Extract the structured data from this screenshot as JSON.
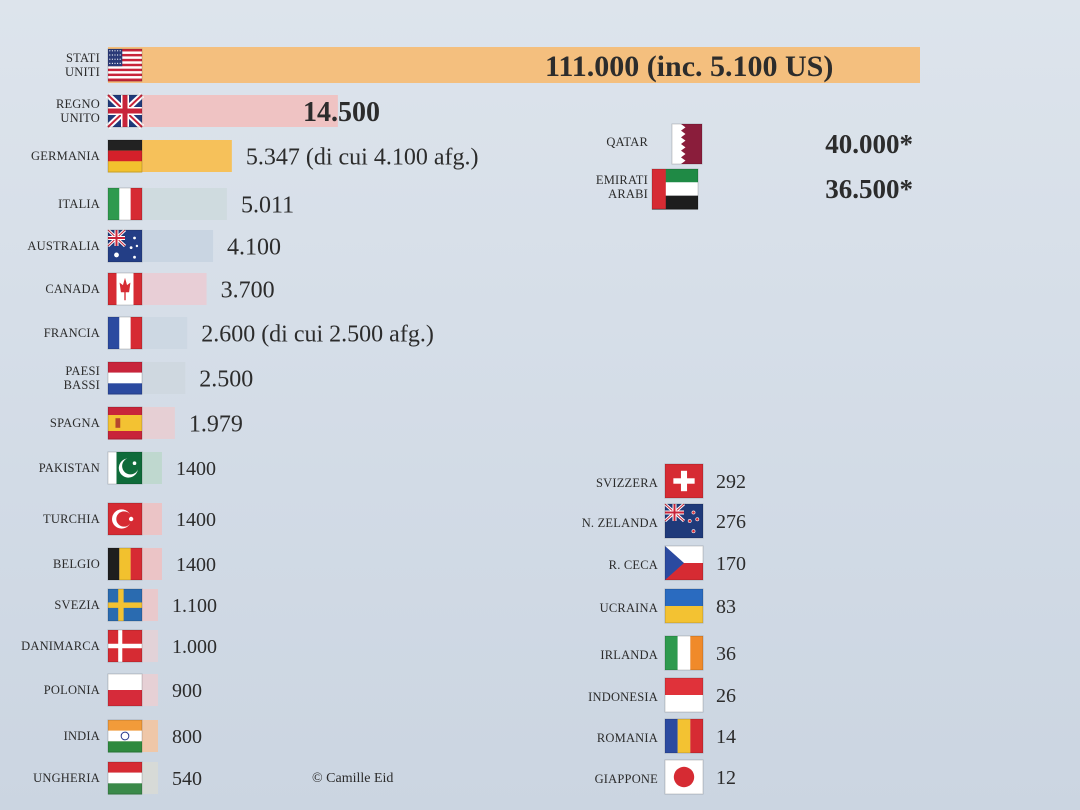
{
  "chart_data": {
    "type": "bar",
    "credit": "© Camille Eid",
    "left_column": [
      {
        "country": "STATI UNITI",
        "flag": "us-flag",
        "value": 111000,
        "label": "111.000  (inc. 5.100 US)",
        "bar_color": "#f4bf7e"
      },
      {
        "country": "REGNO UNITO",
        "flag": "uk-flag",
        "value": 14500,
        "label": "14.500",
        "bar_color": "#efc3c3"
      },
      {
        "country": "GERMANIA",
        "flag": "germany-flag",
        "value": 5347,
        "label": "5.347 (di cui 4.100 afg.)",
        "bar_color": "#f6c15a"
      },
      {
        "country": "ITALIA",
        "flag": "italy-flag",
        "value": 5011,
        "label": "5.011",
        "bar_color": "#cfdbdf"
      },
      {
        "country": "AUSTRALIA",
        "flag": "australia-flag",
        "value": 4100,
        "label": "4.100",
        "bar_color": "#c9d5e2"
      },
      {
        "country": "CANADA",
        "flag": "canada-flag",
        "value": 3700,
        "label": "3.700",
        "bar_color": "#e8ced6"
      },
      {
        "country": "FRANCIA",
        "flag": "france-flag",
        "value": 2600,
        "label": "2.600 (di cui 2.500 afg.)",
        "bar_color": "#cdd8e3"
      },
      {
        "country": "PAESI BASSI",
        "flag": "netherlands-flag",
        "value": 2500,
        "label": "2.500",
        "bar_color": "#cfd8e0"
      },
      {
        "country": "SPAGNA",
        "flag": "spain-flag",
        "value": 1979,
        "label": "1.979",
        "bar_color": "#e6cfd4"
      },
      {
        "country": "PAKISTAN",
        "flag": "pakistan-flag",
        "value": 1400,
        "label": "1400",
        "bar_color": "#bfd8cf"
      },
      {
        "country": "TURCHIA",
        "flag": "turkey-flag",
        "value": 1400,
        "label": "1400",
        "bar_color": "#ebc4c6"
      },
      {
        "country": "BELGIO",
        "flag": "belgium-flag",
        "value": 1400,
        "label": "1400",
        "bar_color": "#ebc4c6"
      },
      {
        "country": "SVEZIA",
        "flag": "sweden-flag",
        "value": 1100,
        "label": "1.100",
        "bar_color": "#e9c9cc"
      },
      {
        "country": "DANIMARCA",
        "flag": "denmark-flag",
        "value": 1000,
        "label": "1.000",
        "bar_color": "#e2d2d8"
      },
      {
        "country": "POLONIA",
        "flag": "poland-flag",
        "value": 900,
        "label": "900",
        "bar_color": "#e6d0d5"
      },
      {
        "country": "INDIA",
        "flag": "india-flag",
        "value": 800,
        "label": "800",
        "bar_color": "#efc7a8"
      },
      {
        "country": "UNGHERIA",
        "flag": "hungary-flag",
        "value": 540,
        "label": "540",
        "bar_color": "#d7dad7"
      }
    ],
    "gulf_column": [
      {
        "country": "QATAR",
        "flag": "qatar-flag",
        "value": 40000,
        "label": "40.000*"
      },
      {
        "country": "EMIRATI ARABI",
        "flag": "uae-flag",
        "value": 36500,
        "label": "36.500*"
      }
    ],
    "right_column": [
      {
        "country": "SVIZZERA",
        "flag": "switzerland-flag",
        "value": 292,
        "label": "292"
      },
      {
        "country": "N. ZELANDA",
        "flag": "new-zealand-flag",
        "value": 276,
        "label": "276"
      },
      {
        "country": "R. CECA",
        "flag": "czech-flag",
        "value": 170,
        "label": "170"
      },
      {
        "country": "UCRAINA",
        "flag": "ukraine-flag",
        "value": 83,
        "label": "83"
      },
      {
        "country": "IRLANDA",
        "flag": "ireland-flag",
        "value": 36,
        "label": "36"
      },
      {
        "country": "INDONESIA",
        "flag": "indonesia-flag",
        "value": 26,
        "label": "26"
      },
      {
        "country": "ROMANIA",
        "flag": "romania-flag",
        "value": 14,
        "label": "14"
      },
      {
        "country": "GIAPPONE",
        "flag": "japan-flag",
        "value": 12,
        "label": "12"
      }
    ]
  }
}
